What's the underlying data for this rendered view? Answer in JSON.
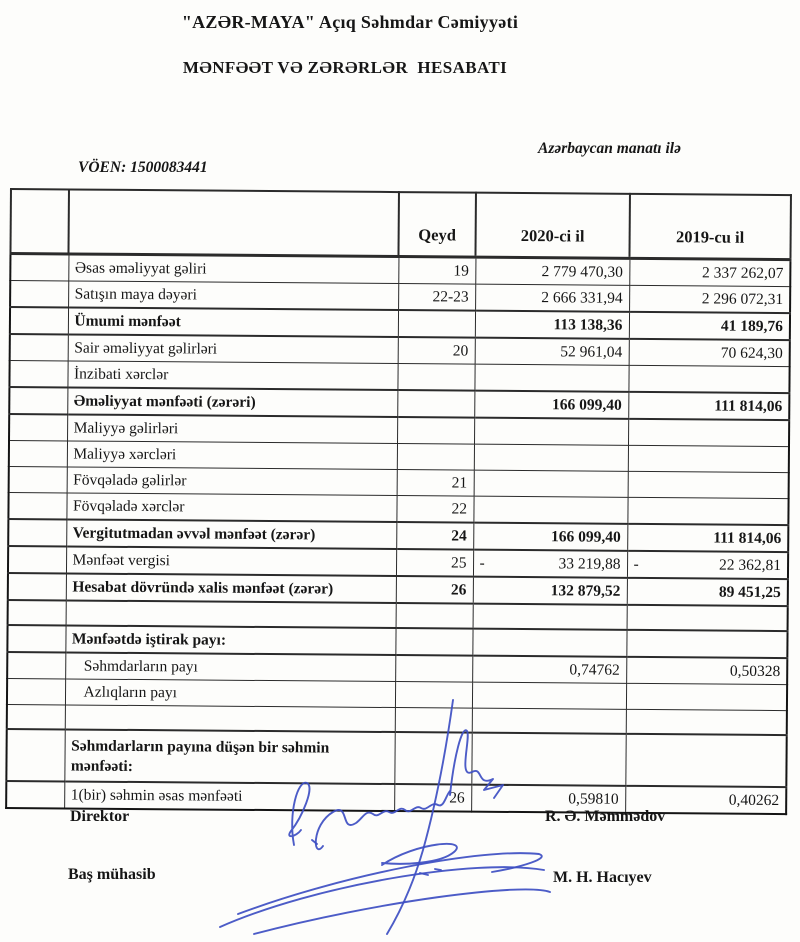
{
  "header": {
    "company_title": "\"AZƏR-MAYA\" Açıq Səhmdar Cəmiyyəti",
    "report_title": "MƏNFƏƏT VƏ ZƏRƏRLƏR  HESABATI",
    "currency_note": "Azərbaycan manatı ilə",
    "voen": "VÖEN: 1500083441"
  },
  "table": {
    "headers": {
      "note": "Qeyd",
      "year_2020": "2020-ci il",
      "year_2019": "2019-cu il"
    },
    "rows": [
      {
        "label": "Əsas əməliyyat gəliri",
        "qeyd": "19",
        "y2020": "2 779 470,30",
        "y2019": "2 337 262,07"
      },
      {
        "label": "Satışın maya dəyəri",
        "qeyd": "22-23",
        "y2020": "2 666 331,94",
        "y2019": "2 296 072,31"
      },
      {
        "label": "Ümumi mənfəət",
        "bold": true,
        "y2020": "113 138,36",
        "y2019": "41 189,76"
      },
      {
        "label": "Sair əməliyyat gəlirləri",
        "qeyd": "20",
        "y2020": "52 961,04",
        "y2019": "70 624,30"
      },
      {
        "label": "İnzibati xərclər"
      },
      {
        "label": "Əməliyyat mənfəəti (zərəri)",
        "bold": true,
        "y2020": "166 099,40",
        "y2019": "111 814,06"
      },
      {
        "label": "Maliyyə gəlirləri"
      },
      {
        "label": "Maliyyə xərcləri"
      },
      {
        "label": "Fövqəladə gəlirlər",
        "qeyd": "21"
      },
      {
        "label": "Fövqəladə xərclər",
        "qeyd": "22"
      },
      {
        "label": "Vergitutmadan əvvəl mənfəət (zərər)",
        "bold": true,
        "qeyd": "24",
        "y2020": "166 099,40",
        "y2019": "111 814,06"
      },
      {
        "label": "Mənfəət vergisi",
        "qeyd": "25",
        "minus2020": "-",
        "y2020": "33 219,88",
        "minus2019": "-",
        "y2019": "22 362,81"
      },
      {
        "label": "Hesabat dövründə xalis mənfəət (zərər)",
        "bold": true,
        "qeyd": "26",
        "y2020": "132 879,52",
        "y2019": "89 451,25"
      },
      {
        "label": "",
        "spacer": true
      },
      {
        "label": "Mənfəətdə iştirak payı:",
        "bold": true
      },
      {
        "label": "Səhmdarların payı",
        "indent": true,
        "y2020": "0,74762",
        "y2019": "0,50328"
      },
      {
        "label": "Azlıqların payı",
        "indent": true
      },
      {
        "label": "",
        "spacer": true
      },
      {
        "label": "Səhmdarların payına düşən bir səhmin mənfəəti:",
        "bold": true,
        "tall": true
      },
      {
        "label": "1(bir) səhmin əsas mənfəəti",
        "qeyd": "26",
        "y2020": "0,59810",
        "y2019": "0,40262"
      }
    ]
  },
  "signatures": {
    "director_title": "Direktor",
    "director_name": "R. Ə. Məmmədov",
    "accountant_title": "Baş mühasib",
    "accountant_name": "M. H. Hacıyev"
  },
  "colors": {
    "ink_text": "#161616",
    "signature_blue": "#3d4ec2",
    "border": "#141414"
  }
}
